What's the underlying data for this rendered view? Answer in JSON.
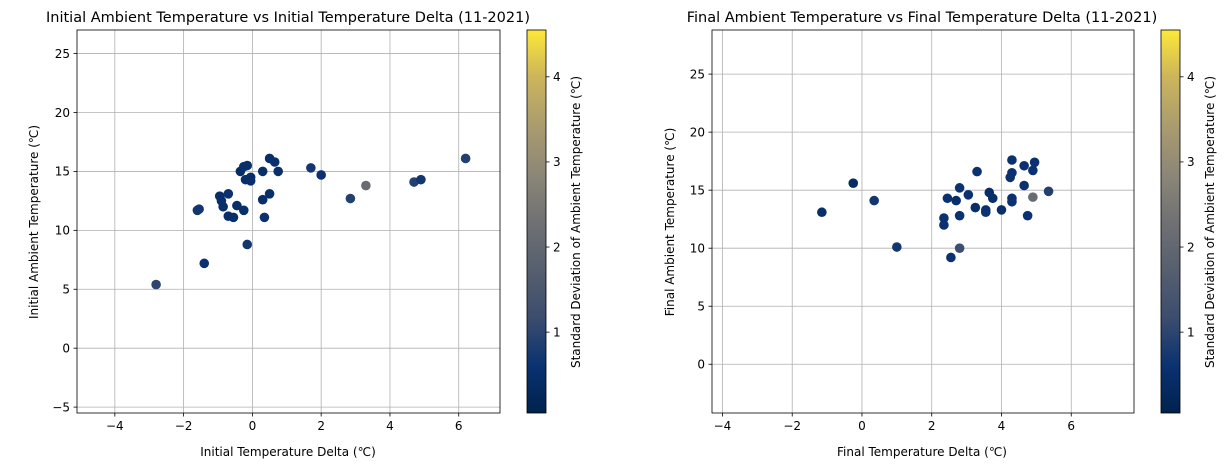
{
  "chart_data": [
    {
      "type": "scatter",
      "title": "Initial Ambient Temperature vs Initial Temperature Delta (11-2021)",
      "xlabel": "Initial Temperature Delta (℃)",
      "ylabel": "Initial Ambient Temperature (℃)",
      "xlim": [
        -5.1,
        7.2
      ],
      "ylim": [
        -5.5,
        27.0
      ],
      "xticks": [
        -4,
        -2,
        0,
        2,
        4,
        6
      ],
      "xtick_labels": [
        "−4",
        "−2",
        "0",
        "2",
        "4",
        "6"
      ],
      "yticks": [
        -5,
        0,
        5,
        10,
        15,
        20,
        25
      ],
      "ytick_labels": [
        "−5",
        "0",
        "5",
        "10",
        "15",
        "20",
        "25"
      ],
      "grid": true,
      "colorbar": {
        "label": "Standard Deviation of Ambient Temperature (℃)",
        "colormap": "cividis",
        "range": [
          0.05,
          4.55
        ],
        "ticks": [
          1,
          2,
          3,
          4
        ],
        "tick_labels": [
          "1",
          "2",
          "3",
          "4"
        ]
      },
      "points": [
        {
          "x": -2.8,
          "y": 5.4,
          "c": 1.0
        },
        {
          "x": -1.4,
          "y": 7.2,
          "c": 0.6
        },
        {
          "x": -1.6,
          "y": 11.7,
          "c": 0.7
        },
        {
          "x": -1.55,
          "y": 11.8,
          "c": 0.7
        },
        {
          "x": -0.95,
          "y": 12.9,
          "c": 0.5
        },
        {
          "x": -0.9,
          "y": 12.5,
          "c": 0.5
        },
        {
          "x": -0.85,
          "y": 12.0,
          "c": 0.5
        },
        {
          "x": -0.7,
          "y": 13.1,
          "c": 0.6
        },
        {
          "x": -0.7,
          "y": 11.2,
          "c": 0.5
        },
        {
          "x": -0.55,
          "y": 11.1,
          "c": 0.5
        },
        {
          "x": -0.45,
          "y": 12.1,
          "c": 0.5
        },
        {
          "x": -0.35,
          "y": 15.0,
          "c": 0.4
        },
        {
          "x": -0.25,
          "y": 15.4,
          "c": 0.5
        },
        {
          "x": -0.25,
          "y": 11.7,
          "c": 0.5
        },
        {
          "x": -0.15,
          "y": 15.5,
          "c": 0.5
        },
        {
          "x": -0.2,
          "y": 14.3,
          "c": 0.5
        },
        {
          "x": -0.05,
          "y": 14.5,
          "c": 0.5
        },
        {
          "x": -0.05,
          "y": 14.2,
          "c": 0.5
        },
        {
          "x": -0.15,
          "y": 8.8,
          "c": 0.7
        },
        {
          "x": 0.3,
          "y": 15.0,
          "c": 0.5
        },
        {
          "x": 0.3,
          "y": 12.6,
          "c": 0.5
        },
        {
          "x": 0.35,
          "y": 11.1,
          "c": 0.6
        },
        {
          "x": 0.5,
          "y": 16.1,
          "c": 0.5
        },
        {
          "x": 0.5,
          "y": 13.1,
          "c": 0.5
        },
        {
          "x": 0.65,
          "y": 15.8,
          "c": 0.5
        },
        {
          "x": 0.75,
          "y": 15.0,
          "c": 0.5
        },
        {
          "x": 1.7,
          "y": 15.3,
          "c": 0.7
        },
        {
          "x": 2.0,
          "y": 14.7,
          "c": 0.6
        },
        {
          "x": 2.85,
          "y": 12.7,
          "c": 0.9
        },
        {
          "x": 3.3,
          "y": 13.8,
          "c": 2.1
        },
        {
          "x": 4.7,
          "y": 14.1,
          "c": 0.9
        },
        {
          "x": 4.9,
          "y": 14.3,
          "c": 0.7
        },
        {
          "x": 6.2,
          "y": 16.1,
          "c": 0.9
        }
      ]
    },
    {
      "type": "scatter",
      "title": "Final Ambient Temperature vs Final Temperature Delta (11-2021)",
      "xlabel": "Final Temperature Delta (℃)",
      "ylabel": "Final Ambient Temperature (℃)",
      "xlim": [
        -4.3,
        7.8
      ],
      "ylim": [
        -4.2,
        28.8
      ],
      "xticks": [
        -4,
        -2,
        0,
        2,
        4,
        6
      ],
      "xtick_labels": [
        "−4",
        "−2",
        "0",
        "2",
        "4",
        "6"
      ],
      "yticks": [
        0,
        5,
        10,
        15,
        20,
        25
      ],
      "ytick_labels": [
        "0",
        "5",
        "10",
        "15",
        "20",
        "25"
      ],
      "grid": true,
      "colorbar": {
        "label": "Standard Deviation of Ambient Temperature (℃)",
        "colormap": "cividis",
        "range": [
          0.05,
          4.55
        ],
        "ticks": [
          1,
          2,
          3,
          4
        ],
        "tick_labels": [
          "1",
          "2",
          "3",
          "4"
        ]
      },
      "points": [
        {
          "x": -1.15,
          "y": 13.1,
          "c": 0.5
        },
        {
          "x": -0.25,
          "y": 15.6,
          "c": 0.4
        },
        {
          "x": 0.35,
          "y": 14.1,
          "c": 0.7
        },
        {
          "x": 1.0,
          "y": 10.1,
          "c": 0.7
        },
        {
          "x": 2.35,
          "y": 12.6,
          "c": 0.6
        },
        {
          "x": 2.35,
          "y": 12.0,
          "c": 0.6
        },
        {
          "x": 2.45,
          "y": 14.3,
          "c": 0.6
        },
        {
          "x": 2.55,
          "y": 9.2,
          "c": 0.6
        },
        {
          "x": 2.7,
          "y": 14.1,
          "c": 0.5
        },
        {
          "x": 2.8,
          "y": 15.2,
          "c": 0.6
        },
        {
          "x": 2.8,
          "y": 12.8,
          "c": 0.6
        },
        {
          "x": 2.8,
          "y": 10.0,
          "c": 1.2
        },
        {
          "x": 3.05,
          "y": 14.6,
          "c": 0.6
        },
        {
          "x": 3.25,
          "y": 13.5,
          "c": 0.5
        },
        {
          "x": 3.3,
          "y": 16.6,
          "c": 0.6
        },
        {
          "x": 3.55,
          "y": 13.3,
          "c": 0.6
        },
        {
          "x": 3.55,
          "y": 13.1,
          "c": 0.6
        },
        {
          "x": 3.65,
          "y": 14.8,
          "c": 0.5
        },
        {
          "x": 3.75,
          "y": 14.3,
          "c": 0.5
        },
        {
          "x": 4.0,
          "y": 13.3,
          "c": 0.5
        },
        {
          "x": 4.25,
          "y": 16.1,
          "c": 0.6
        },
        {
          "x": 4.3,
          "y": 16.5,
          "c": 0.6
        },
        {
          "x": 4.3,
          "y": 17.6,
          "c": 0.6
        },
        {
          "x": 4.3,
          "y": 14.3,
          "c": 0.6
        },
        {
          "x": 4.3,
          "y": 14.0,
          "c": 0.6
        },
        {
          "x": 4.65,
          "y": 15.4,
          "c": 0.6
        },
        {
          "x": 4.65,
          "y": 17.1,
          "c": 0.6
        },
        {
          "x": 4.75,
          "y": 12.8,
          "c": 0.6
        },
        {
          "x": 4.9,
          "y": 14.4,
          "c": 2.1
        },
        {
          "x": 4.9,
          "y": 16.7,
          "c": 0.6
        },
        {
          "x": 4.95,
          "y": 17.4,
          "c": 0.6
        },
        {
          "x": 5.35,
          "y": 14.9,
          "c": 0.9
        }
      ]
    }
  ]
}
